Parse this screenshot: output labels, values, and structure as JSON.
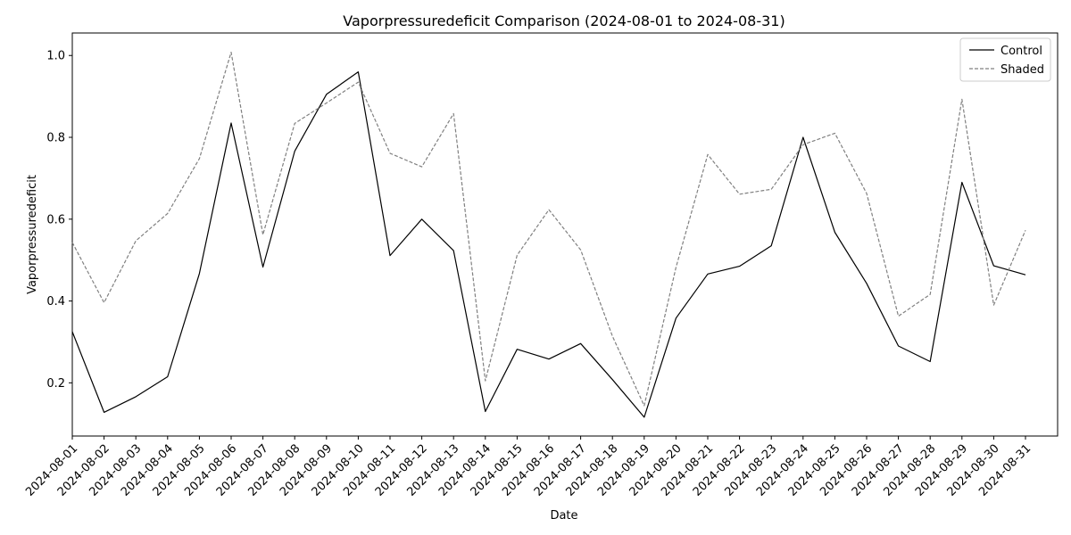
{
  "chart_data": {
    "type": "line",
    "title": "Vaporpressuredeficit Comparison (2024-08-01 to 2024-08-31)",
    "xlabel": "Date",
    "ylabel": "Vaporpressuredeficit",
    "ylim": [
      0.07,
      1.055
    ],
    "yticks": [
      0.2,
      0.4,
      0.6,
      0.8,
      1.0
    ],
    "ytick_labels": [
      "0.2",
      "0.4",
      "0.6",
      "0.8",
      "1.0"
    ],
    "grid": false,
    "legend_position": "top-right",
    "x": [
      "2024-08-01",
      "2024-08-02",
      "2024-08-03",
      "2024-08-04",
      "2024-08-05",
      "2024-08-06",
      "2024-08-07",
      "2024-08-08",
      "2024-08-09",
      "2024-08-10",
      "2024-08-11",
      "2024-08-12",
      "2024-08-13",
      "2024-08-14",
      "2024-08-15",
      "2024-08-16",
      "2024-08-17",
      "2024-08-18",
      "2024-08-19",
      "2024-08-20",
      "2024-08-21",
      "2024-08-22",
      "2024-08-23",
      "2024-08-24",
      "2024-08-25",
      "2024-08-26",
      "2024-08-27",
      "2024-08-28",
      "2024-08-29",
      "2024-08-30",
      "2024-08-31"
    ],
    "series": [
      {
        "name": "Control",
        "color": "#000000",
        "dash": "solid",
        "values": [
          0.325,
          0.128,
          0.166,
          0.215,
          0.467,
          0.835,
          0.483,
          0.766,
          0.905,
          0.96,
          0.511,
          0.6,
          0.523,
          0.13,
          0.282,
          0.258,
          0.296,
          0.208,
          0.116,
          0.358,
          0.466,
          0.485,
          0.535,
          0.8,
          0.568,
          0.443,
          0.29,
          0.252,
          0.69,
          0.486,
          0.464
        ]
      },
      {
        "name": "Shaded",
        "color": "#808080",
        "dash": "dashed",
        "values": [
          0.543,
          0.396,
          0.547,
          0.614,
          0.748,
          1.008,
          0.562,
          0.834,
          0.884,
          0.935,
          0.761,
          0.728,
          0.858,
          0.205,
          0.512,
          0.623,
          0.525,
          0.314,
          0.144,
          0.482,
          0.758,
          0.661,
          0.673,
          0.782,
          0.81,
          0.663,
          0.363,
          0.416,
          0.893,
          0.39,
          0.573
        ]
      }
    ]
  }
}
